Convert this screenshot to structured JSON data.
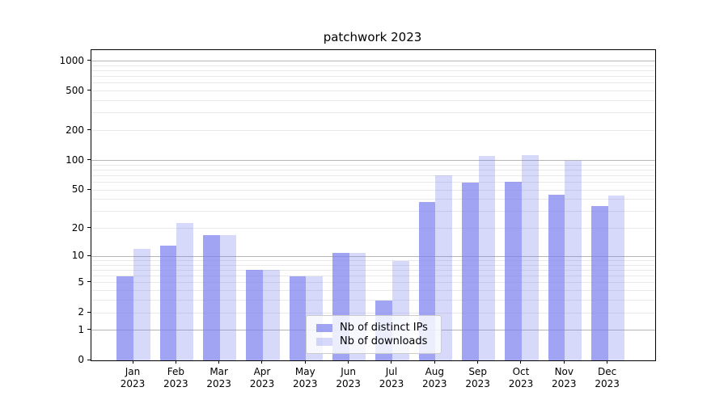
{
  "chart_data": {
    "type": "bar",
    "title": "patchwork 2023",
    "categories": [
      "Jan 2023",
      "Feb 2023",
      "Mar 2023",
      "Apr 2023",
      "May 2023",
      "Jun 2023",
      "Jul 2023",
      "Aug 2023",
      "Sep 2023",
      "Oct 2023",
      "Nov 2023",
      "Dec 2023"
    ],
    "series": [
      {
        "name": "Nb of distinct IPs",
        "values": [
          6,
          13,
          17,
          7,
          6,
          11,
          3,
          38,
          60,
          61,
          45,
          34
        ],
        "color": "#7b81ed",
        "alpha": 0.72
      },
      {
        "name": "Nb of downloads",
        "values": [
          12,
          23,
          17,
          7,
          6,
          11,
          9,
          71,
          110,
          114,
          100,
          44
        ],
        "color": "#7b81ed",
        "alpha": 0.3
      }
    ],
    "y_scale": "log10(value+1)",
    "ylim": [
      0,
      1000
    ],
    "y_ticks": [
      0,
      1,
      2,
      5,
      10,
      20,
      50,
      100,
      200,
      500,
      1000
    ],
    "grid": {
      "major_values": [
        1,
        10,
        100,
        1000
      ],
      "minor_values": [
        2,
        3,
        4,
        5,
        6,
        7,
        8,
        9,
        20,
        30,
        40,
        50,
        60,
        70,
        80,
        90,
        200,
        300,
        400,
        500,
        600,
        700,
        800,
        900
      ],
      "major_color": "#b5b5b5",
      "minor_color": "#e9e9e9"
    },
    "legend_position": "lower center",
    "spine_color": "#000000",
    "text_color": "#000000",
    "background_color": "#ffffff"
  }
}
